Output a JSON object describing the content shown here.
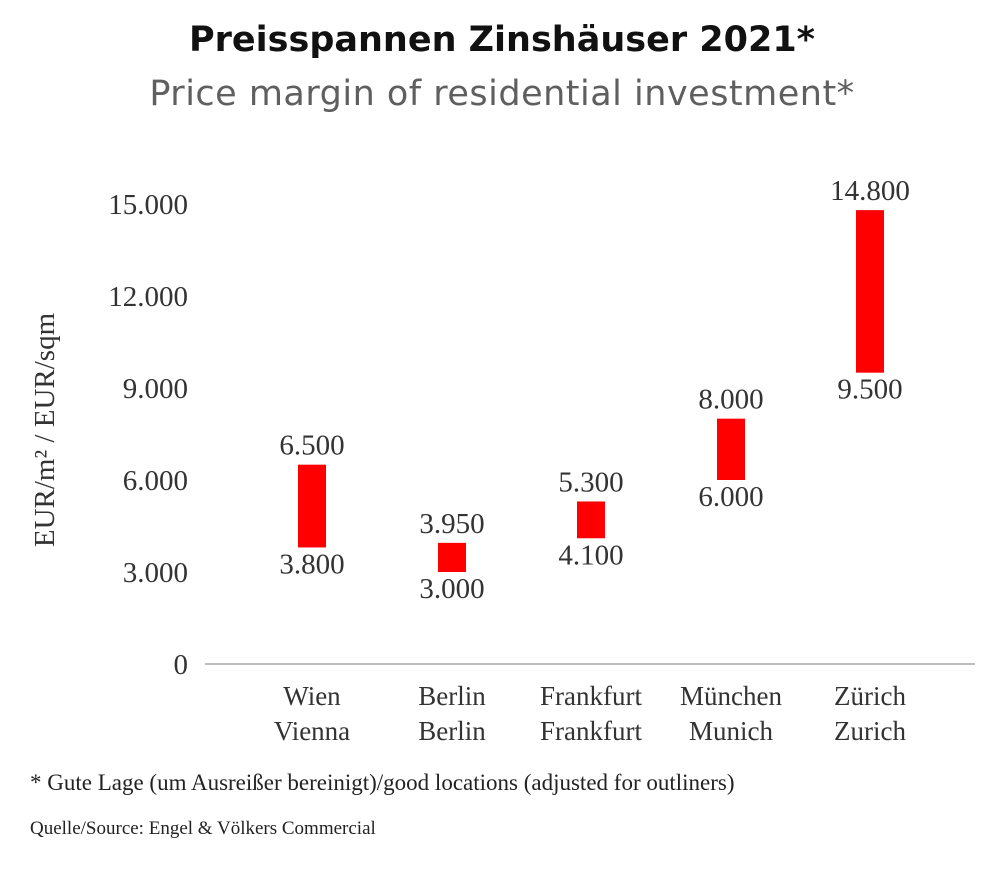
{
  "title": "Preisspannen Zinshäuser 2021*",
  "subtitle": "Price margin of residential investment*",
  "footnote": "* Gute Lage (um Ausreißer bereinigt)/good locations (adjusted for outliners)",
  "source": "Quelle/Source: Engel & Völkers Commercial",
  "colors": {
    "bar": "#ff0000",
    "axis": "#a6a6a6",
    "text": "#333333"
  },
  "chart_data": {
    "type": "bar",
    "subtype": "floating-range",
    "categories": [
      "Wien\nVienna",
      "Berlin\nBerlin",
      "Frankfurt\nFrankfurt",
      "München\nMunich",
      "Zürich\nZurich"
    ],
    "low": [
      3800,
      3000,
      4100,
      6000,
      9500
    ],
    "high": [
      6500,
      3950,
      5300,
      8000,
      14800
    ],
    "low_labels": [
      "3.800",
      "3.000",
      "4.100",
      "6.000",
      "9.500"
    ],
    "high_labels": [
      "6.500",
      "3.950",
      "5.300",
      "8.000",
      "14.800"
    ],
    "ylabel": "EUR/m² / EUR/sqm",
    "yticks": [
      0,
      3000,
      6000,
      9000,
      12000,
      15000
    ],
    "ytick_labels": [
      "0",
      "3.000",
      "6.000",
      "9.000",
      "12.000",
      "15.000"
    ],
    "ylim": [
      0,
      15000
    ],
    "grid": false,
    "legend": "none"
  }
}
